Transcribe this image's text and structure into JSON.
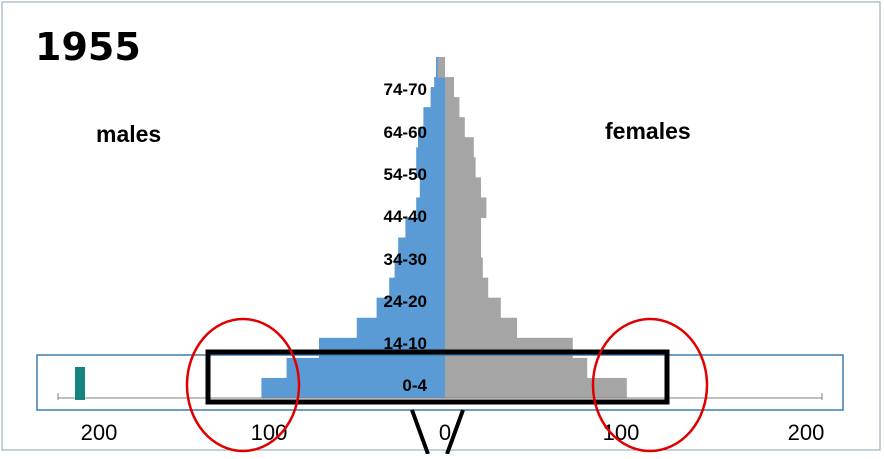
{
  "chart_data": {
    "type": "bar",
    "title": "1955",
    "left_label": "males",
    "right_label": "females",
    "age_labels": [
      "74-70",
      "64-60",
      "54-50",
      "44-40",
      "34-30",
      "24-20",
      "14-10",
      "0-4"
    ],
    "x_tick_labels": [
      "200",
      "100",
      "0",
      "100",
      "200"
    ],
    "xlim": [
      -200,
      200
    ],
    "males": [
      5,
      5,
      6,
      8,
      8,
      12,
      12,
      15,
      15,
      16,
      16,
      16,
      14,
      14,
      16,
      16,
      22,
      22,
      26,
      26,
      28,
      28,
      31,
      31,
      38,
      38,
      49,
      49,
      70,
      70,
      88,
      88,
      102,
      102
    ],
    "females": [
      -4,
      -4,
      5,
      5,
      8,
      8,
      11,
      11,
      16,
      16,
      17,
      17,
      20,
      20,
      23,
      23,
      20,
      20,
      20,
      20,
      21,
      21,
      24,
      24,
      31,
      31,
      40,
      40,
      71,
      71,
      79,
      79,
      101,
      101
    ],
    "colors": {
      "males": "#5b9bd5",
      "females": "#a5a5a5",
      "highlight_circle": "#e00000",
      "highlight_box": "#000000"
    }
  }
}
